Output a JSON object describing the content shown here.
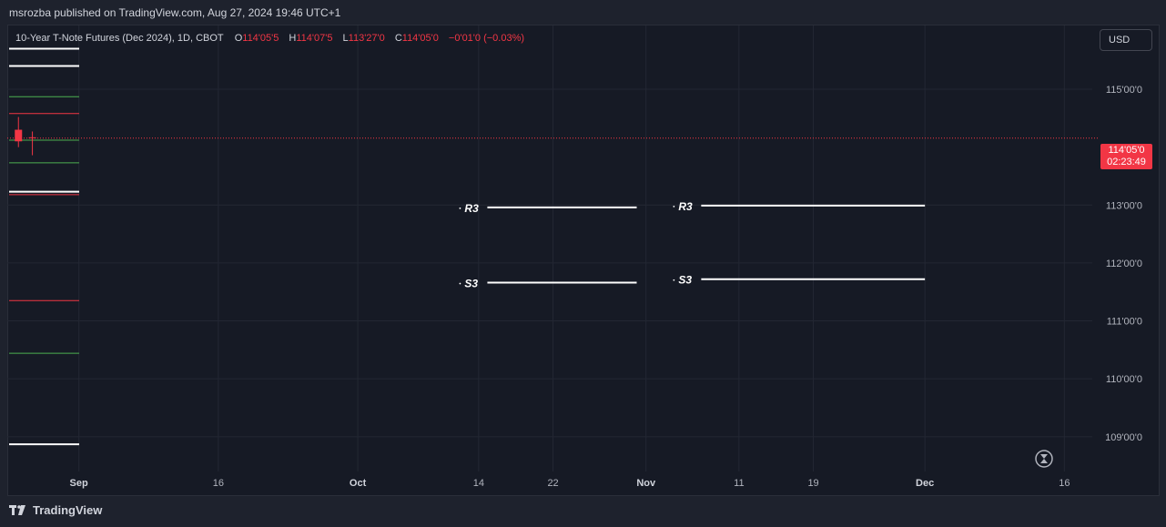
{
  "published_by": "msrozba published on TradingView.com, Aug 27, 2024 19:46 UTC+1",
  "legend": {
    "symbol": "10-Year T-Note Futures (Dec 2024), 1D, CBOT",
    "o_label": "O",
    "o_value": "114'05'5",
    "h_label": "H",
    "h_value": "114'07'5",
    "l_label": "L",
    "l_value": "113'27'0",
    "c_label": "C",
    "c_value": "114'05'0",
    "change": "−0'01'0 (−0.03%)"
  },
  "currency_button": "USD",
  "last_price": {
    "price": "114'05'0",
    "countdown": "02:23:49",
    "color": "#f23645"
  },
  "footer": {
    "logo_text": "TradingView",
    "logo_icon": "tradingview-logo-icon"
  },
  "chart_data": {
    "type": "line",
    "title": "",
    "xlabel": "",
    "ylabel": "",
    "y_axis_labels": [
      "109'00'0",
      "110'00'0",
      "111'00'0",
      "112'00'0",
      "113'00'0",
      "115'00'0"
    ],
    "y_axis_values": [
      109,
      110,
      111,
      112,
      113,
      115
    ],
    "ylim": [
      108.4,
      116.1
    ],
    "x_axis_labels": [
      "Sep",
      "16",
      "Oct",
      "14",
      "22",
      "Nov",
      "11",
      "19",
      "Dec",
      "16"
    ],
    "x_axis_days": [
      0,
      15,
      30,
      43,
      51,
      61,
      71,
      79,
      91,
      106
    ],
    "x_axis_bold": [
      true,
      false,
      true,
      false,
      false,
      true,
      false,
      false,
      true,
      false
    ],
    "xlim_days": [
      -7.7,
      109
    ],
    "current_price_value": 114.156,
    "pivot_lines": [
      {
        "label": "R3",
        "start_day": 41,
        "end_day": 60,
        "value": 112.96,
        "color": "#ffffff"
      },
      {
        "label": "R3",
        "start_day": 64,
        "end_day": 91,
        "value": 112.99,
        "color": "#ffffff"
      },
      {
        "label": "S3",
        "start_day": 41,
        "end_day": 60,
        "value": 111.66,
        "color": "#ffffff"
      },
      {
        "label": "S3",
        "start_day": 64,
        "end_day": 91,
        "value": 111.72,
        "color": "#ffffff"
      }
    ],
    "left_levels": [
      {
        "value": 115.7,
        "color": "#ffffff"
      },
      {
        "value": 115.4,
        "color": "#ffffff"
      },
      {
        "value": 114.87,
        "color": "#4caf50"
      },
      {
        "value": 114.58,
        "color": "#f23645"
      },
      {
        "value": 114.12,
        "color": "#4caf50"
      },
      {
        "value": 113.73,
        "color": "#4caf50"
      },
      {
        "value": 113.23,
        "color": "#ffffff"
      },
      {
        "value": 113.18,
        "color": "#f23645"
      },
      {
        "value": 111.35,
        "color": "#f23645"
      },
      {
        "value": 110.44,
        "color": "#4caf50"
      },
      {
        "value": 108.87,
        "color": "#ffffff"
      }
    ],
    "candles": [
      {
        "day": -6.5,
        "open": 114.3,
        "high": 114.52,
        "low": 114.0,
        "close": 114.1,
        "color": "#f23645"
      },
      {
        "day": -5,
        "open": 114.17,
        "high": 114.27,
        "low": 113.86,
        "close": 114.16,
        "color": "#f23645"
      }
    ],
    "series_color": "#ffffff",
    "grid": true,
    "grid_color": "#232733",
    "axis_text_color": "#b2b5be"
  }
}
